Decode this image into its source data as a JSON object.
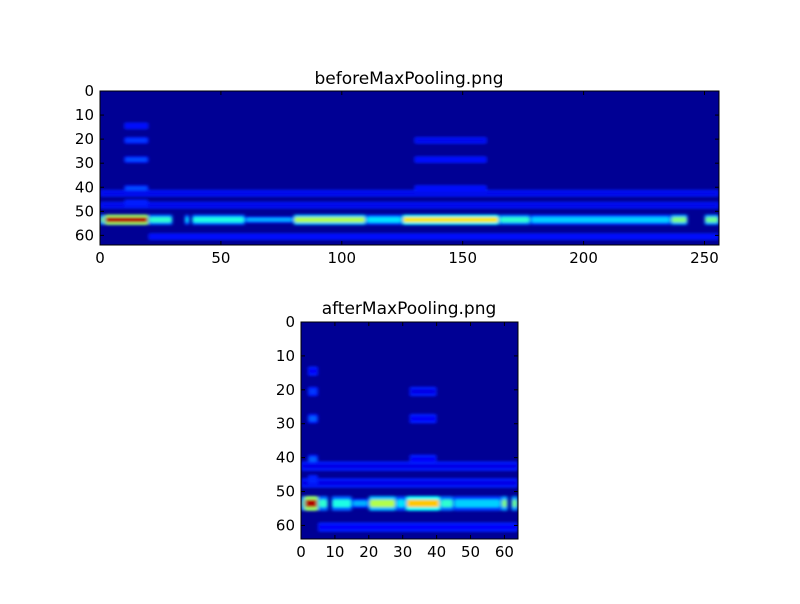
{
  "chart_data": [
    {
      "type": "heatmap",
      "title": "beforeMaxPooling.png",
      "colormap": "jet",
      "xlim": [
        0,
        256
      ],
      "ylim": [
        64,
        0
      ],
      "xticks": [
        "0",
        "50",
        "100",
        "150",
        "200",
        "250"
      ],
      "yticks": [
        "0",
        "10",
        "20",
        "30",
        "40",
        "50",
        "60"
      ],
      "background_intensity": 0.02,
      "features": [
        {
          "x": [
            0,
            2
          ],
          "y": 53,
          "intensity": 0.5
        },
        {
          "x": [
            2,
            20
          ],
          "y": 53,
          "intensity": 0.95
        },
        {
          "x": [
            20,
            30
          ],
          "y": 53,
          "intensity": 0.42
        },
        {
          "x": [
            35,
            37
          ],
          "y": 53,
          "intensity": 0.35
        },
        {
          "x": [
            38,
            60
          ],
          "y": 53,
          "intensity": 0.4
        },
        {
          "x": [
            60,
            80
          ],
          "y": 53,
          "intensity": 0.3
        },
        {
          "x": [
            80,
            110
          ],
          "y": 53,
          "intensity": 0.55
        },
        {
          "x": [
            110,
            125
          ],
          "y": 53,
          "intensity": 0.35
        },
        {
          "x": [
            125,
            165
          ],
          "y": 53,
          "intensity": 0.65
        },
        {
          "x": [
            165,
            178
          ],
          "y": 53,
          "intensity": 0.42
        },
        {
          "x": [
            178,
            236
          ],
          "y": 53,
          "intensity": 0.33
        },
        {
          "x": [
            236,
            243
          ],
          "y": 53,
          "intensity": 0.5
        },
        {
          "x": [
            250,
            256
          ],
          "y": 53,
          "intensity": 0.48
        },
        {
          "x": [
            10,
            20
          ],
          "y": 14,
          "intensity": 0.12
        },
        {
          "x": [
            10,
            20
          ],
          "y": 20,
          "intensity": 0.18
        },
        {
          "x": [
            10,
            20
          ],
          "y": 28,
          "intensity": 0.2
        },
        {
          "x": [
            10,
            20
          ],
          "y": 40,
          "intensity": 0.2
        },
        {
          "x": [
            10,
            20
          ],
          "y": 46,
          "intensity": 0.15
        },
        {
          "x": [
            130,
            160
          ],
          "y": 20,
          "intensity": 0.1
        },
        {
          "x": [
            130,
            160
          ],
          "y": 28,
          "intensity": 0.12
        },
        {
          "x": [
            130,
            160
          ],
          "y": 40,
          "intensity": 0.12
        },
        {
          "x": [
            0,
            256
          ],
          "y": 42,
          "intensity": 0.1
        },
        {
          "x": [
            0,
            256
          ],
          "y": 47,
          "intensity": 0.1
        },
        {
          "x": [
            20,
            256
          ],
          "y": 60,
          "intensity": 0.12
        }
      ]
    },
    {
      "type": "heatmap",
      "title": "afterMaxPooling.png",
      "colormap": "jet",
      "xlim": [
        0,
        64
      ],
      "ylim": [
        64,
        0
      ],
      "xticks": [
        "0",
        "10",
        "20",
        "30",
        "40",
        "50",
        "60"
      ],
      "yticks": [
        "0",
        "10",
        "20",
        "30",
        "40",
        "50",
        "60"
      ],
      "background_intensity": 0.02,
      "features": [
        {
          "x": [
            0,
            1
          ],
          "y": 53,
          "intensity": 0.5
        },
        {
          "x": [
            1,
            5
          ],
          "y": 53,
          "intensity": 0.95
        },
        {
          "x": [
            5,
            8
          ],
          "y": 53,
          "intensity": 0.42
        },
        {
          "x": [
            9,
            15
          ],
          "y": 53,
          "intensity": 0.4
        },
        {
          "x": [
            15,
            20
          ],
          "y": 53,
          "intensity": 0.3
        },
        {
          "x": [
            20,
            28
          ],
          "y": 53,
          "intensity": 0.55
        },
        {
          "x": [
            28,
            31
          ],
          "y": 53,
          "intensity": 0.35
        },
        {
          "x": [
            31,
            41
          ],
          "y": 53,
          "intensity": 0.68
        },
        {
          "x": [
            41,
            45
          ],
          "y": 53,
          "intensity": 0.42
        },
        {
          "x": [
            45,
            59
          ],
          "y": 53,
          "intensity": 0.33
        },
        {
          "x": [
            59,
            61
          ],
          "y": 53,
          "intensity": 0.5
        },
        {
          "x": [
            62,
            64
          ],
          "y": 53,
          "intensity": 0.48
        },
        {
          "x": [
            2,
            5
          ],
          "y": 14,
          "intensity": 0.12
        },
        {
          "x": [
            2,
            5
          ],
          "y": 20,
          "intensity": 0.18
        },
        {
          "x": [
            2,
            5
          ],
          "y": 28,
          "intensity": 0.22
        },
        {
          "x": [
            2,
            5
          ],
          "y": 40,
          "intensity": 0.22
        },
        {
          "x": [
            2,
            5
          ],
          "y": 46,
          "intensity": 0.16
        },
        {
          "x": [
            32,
            40
          ],
          "y": 20,
          "intensity": 0.1
        },
        {
          "x": [
            32,
            40
          ],
          "y": 28,
          "intensity": 0.12
        },
        {
          "x": [
            32,
            40
          ],
          "y": 40,
          "intensity": 0.12
        },
        {
          "x": [
            0,
            64
          ],
          "y": 42,
          "intensity": 0.1
        },
        {
          "x": [
            0,
            64
          ],
          "y": 47,
          "intensity": 0.1
        },
        {
          "x": [
            5,
            64
          ],
          "y": 60,
          "intensity": 0.12
        }
      ]
    }
  ]
}
